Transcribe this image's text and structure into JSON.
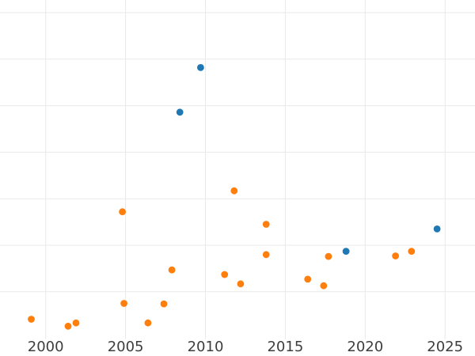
{
  "chart": {
    "background": "#ffffff",
    "grid_color": "#e9e9e9",
    "tick_label_color": "#3d3d3d",
    "point_radius": 4.4
  },
  "chart_data": {
    "type": "scatter",
    "title": "",
    "xlabel": "",
    "ylabel": "",
    "grid": true,
    "legend": false,
    "x_tick_labels": [
      "2000",
      "2005",
      "2010",
      "2015",
      "2020",
      "2025"
    ],
    "x_tick_values": [
      2000,
      2005,
      2010,
      2015,
      2020,
      2025
    ],
    "y_gridline_values": [
      1,
      2,
      3,
      4,
      5,
      6,
      7
    ],
    "xlim": [
      1997.1,
      2026.9
    ],
    "ylim": [
      0,
      7.27
    ],
    "y_unit_note": "y-axis has no tick labels; y values estimated in gridline units (1 unit = one horizontal gridline spacing above the bottom of the plot)",
    "series": [
      {
        "name": "blue",
        "color": "#1f77b4",
        "points": [
          [
            2008.4,
            4.86
          ],
          [
            2009.7,
            5.82
          ],
          [
            2018.8,
            1.87
          ],
          [
            2024.5,
            2.35
          ]
        ]
      },
      {
        "name": "orange",
        "color": "#ff7f0e",
        "points": [
          [
            1999.1,
            0.41
          ],
          [
            2001.4,
            0.26
          ],
          [
            2001.9,
            0.33
          ],
          [
            2004.8,
            2.72
          ],
          [
            2004.9,
            0.75
          ],
          [
            2006.4,
            0.33
          ],
          [
            2007.4,
            0.74
          ],
          [
            2007.9,
            1.47
          ],
          [
            2011.2,
            1.37
          ],
          [
            2011.8,
            3.17
          ],
          [
            2012.2,
            1.17
          ],
          [
            2013.8,
            2.45
          ],
          [
            2013.8,
            1.8
          ],
          [
            2016.4,
            1.27
          ],
          [
            2017.4,
            1.13
          ],
          [
            2017.7,
            1.76
          ],
          [
            2021.9,
            1.77
          ],
          [
            2022.9,
            1.87
          ]
        ]
      }
    ]
  }
}
